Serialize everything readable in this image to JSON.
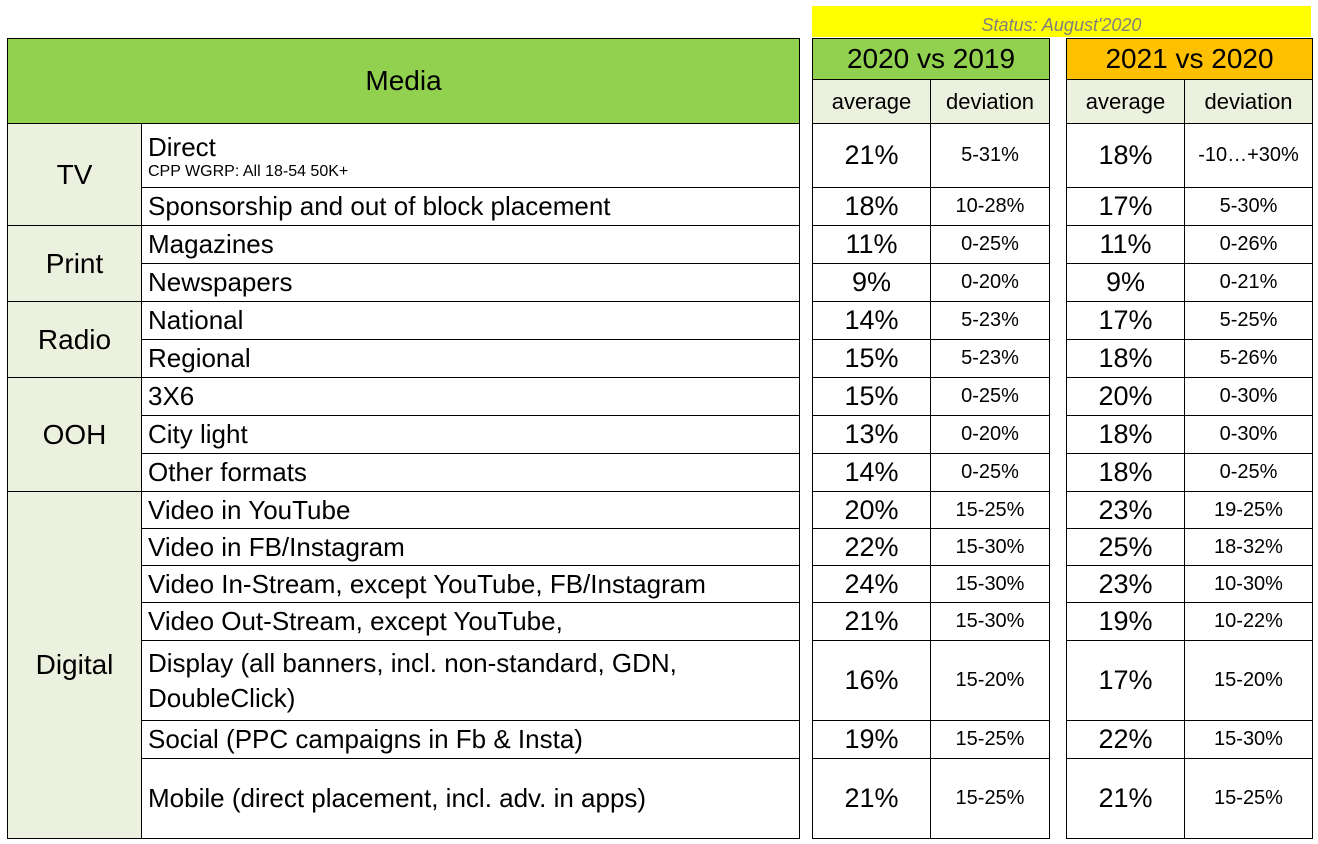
{
  "status": "Status: August'2020",
  "media_header": "Media",
  "column_groups": [
    {
      "title": "2020 vs 2019",
      "color": "#92d050",
      "sub": [
        "average",
        "deviation"
      ]
    },
    {
      "title": "2021 vs 2020",
      "color": "#ffc000",
      "sub": [
        "average",
        "deviation"
      ]
    }
  ],
  "groups": [
    "TV",
    "Print",
    "Radio",
    "OOH",
    "Digital"
  ],
  "rows": [
    {
      "label": "Direct",
      "note": "CPP WGRP: All 18-54 50K+",
      "avg2020": "21%",
      "dev2020": "5-31%",
      "avg2021": "18%",
      "dev2021": "-10…+30%"
    },
    {
      "label": "Sponsorship and out of block placement",
      "avg2020": "18%",
      "dev2020": "10-28%",
      "avg2021": "17%",
      "dev2021": "5-30%"
    },
    {
      "label": "Magazines",
      "avg2020": "11%",
      "dev2020": "0-25%",
      "avg2021": "11%",
      "dev2021": "0-26%"
    },
    {
      "label": "Newspapers",
      "avg2020": "9%",
      "dev2020": "0-20%",
      "avg2021": "9%",
      "dev2021": "0-21%"
    },
    {
      "label": "National",
      "avg2020": "14%",
      "dev2020": "5-23%",
      "avg2021": "17%",
      "dev2021": "5-25%"
    },
    {
      "label": "Regional",
      "avg2020": "15%",
      "dev2020": "5-23%",
      "avg2021": "18%",
      "dev2021": "5-26%"
    },
    {
      "label": "3X6",
      "avg2020": "15%",
      "dev2020": "0-25%",
      "avg2021": "20%",
      "dev2021": "0-30%"
    },
    {
      "label": "City light",
      "avg2020": "13%",
      "dev2020": "0-20%",
      "avg2021": "18%",
      "dev2021": "0-30%"
    },
    {
      "label": "Other formats",
      "avg2020": "14%",
      "dev2020": "0-25%",
      "avg2021": "18%",
      "dev2021": "0-25%"
    },
    {
      "label": "Video in YouTube",
      "avg2020": "20%",
      "dev2020": "15-25%",
      "avg2021": "23%",
      "dev2021": "19-25%"
    },
    {
      "label": "Video in FB/Instagram",
      "avg2020": "22%",
      "dev2020": "15-30%",
      "avg2021": "25%",
      "dev2021": "18-32%"
    },
    {
      "label": "Video In-Stream, except YouTube, FB/Instagram",
      "avg2020": "24%",
      "dev2020": "15-30%",
      "avg2021": "23%",
      "dev2021": "10-30%"
    },
    {
      "label": "Video Out-Stream, except YouTube,",
      "avg2020": "21%",
      "dev2020": "15-30%",
      "avg2021": "19%",
      "dev2021": "10-22%"
    },
    {
      "label": "Display (all banners, incl. non-standard, GDN, DoubleClick)",
      "avg2020": "16%",
      "dev2020": "15-20%",
      "avg2021": "17%",
      "dev2021": "15-20%"
    },
    {
      "label": "Social (PPC campaigns in Fb & Insta)",
      "avg2020": "19%",
      "dev2020": "15-25%",
      "avg2021": "22%",
      "dev2021": "15-30%"
    },
    {
      "label": "Mobile (direct placement, incl. adv. in apps)",
      "avg2020": "21%",
      "dev2020": "15-25%",
      "avg2021": "21%",
      "dev2021": "15-25%"
    }
  ]
}
